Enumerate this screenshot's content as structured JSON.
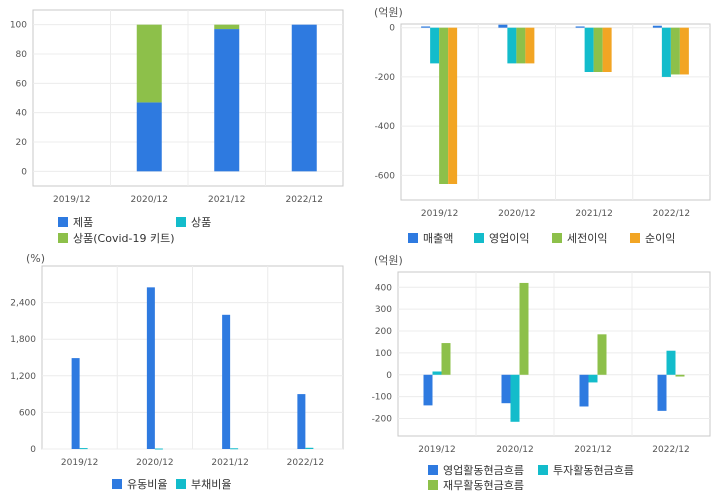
{
  "charts": [
    {
      "id": "product-mix",
      "type": "bar",
      "stacked": true,
      "unit": "",
      "categories": [
        "2019/12",
        "2020/12",
        "2021/12",
        "2022/12"
      ],
      "ylim": [
        -10,
        110
      ],
      "yticks": [
        0,
        20,
        40,
        60,
        80,
        100
      ],
      "series": [
        {
          "name": "제품",
          "color": "#2e7ae0",
          "values": [
            0,
            47,
            97,
            100
          ]
        },
        {
          "name": "상품",
          "color": "#13bccb",
          "values": [
            0,
            0,
            0,
            0
          ]
        },
        {
          "name": "상품(Covid-19 키트)",
          "color": "#8dc04a",
          "values": [
            0,
            53,
            3,
            0
          ]
        }
      ]
    },
    {
      "id": "profit",
      "type": "bar",
      "stacked": false,
      "unit": "(억원)",
      "categories": [
        "2019/12",
        "2020/12",
        "2021/12",
        "2022/12"
      ],
      "ylim": [
        -700,
        15
      ],
      "yticks": [
        0,
        -200,
        -400,
        -600
      ],
      "series": [
        {
          "name": "매출액",
          "color": "#2e7ae0",
          "values": [
            5,
            12,
            5,
            8
          ]
        },
        {
          "name": "영업이익",
          "color": "#13bccb",
          "values": [
            -145,
            -145,
            -180,
            -200
          ]
        },
        {
          "name": "세전이익",
          "color": "#8dc04a",
          "values": [
            -635,
            -145,
            -180,
            -190
          ]
        },
        {
          "name": "순이익",
          "color": "#f2a524",
          "values": [
            -635,
            -145,
            -180,
            -190
          ]
        }
      ]
    },
    {
      "id": "ratios",
      "type": "bar",
      "stacked": false,
      "unit": "(%)",
      "categories": [
        "2019/12",
        "2020/12",
        "2021/12",
        "2022/12"
      ],
      "ylim": [
        0,
        3000
      ],
      "yticks": [
        0,
        600,
        1200,
        1800,
        2400
      ],
      "series": [
        {
          "name": "유동비율",
          "color": "#2e7ae0",
          "values": [
            1490,
            2650,
            2200,
            900
          ]
        },
        {
          "name": "부채비율",
          "color": "#13bccb",
          "values": [
            15,
            8,
            12,
            20
          ]
        }
      ]
    },
    {
      "id": "cashflow",
      "type": "bar",
      "stacked": false,
      "unit": "(억원)",
      "categories": [
        "2019/12",
        "2020/12",
        "2021/12",
        "2022/12"
      ],
      "ylim": [
        -280,
        470
      ],
      "yticks": [
        400,
        300,
        200,
        100,
        0,
        -100,
        -200
      ],
      "series": [
        {
          "name": "영업활동현금흐름",
          "color": "#2e7ae0",
          "values": [
            -140,
            -130,
            -145,
            -165
          ]
        },
        {
          "name": "투자활동현금흐름",
          "color": "#13bccb",
          "values": [
            15,
            -215,
            -35,
            110
          ]
        },
        {
          "name": "재무활동현금흐름",
          "color": "#8dc04a",
          "values": [
            145,
            420,
            185,
            -8
          ]
        }
      ]
    }
  ]
}
